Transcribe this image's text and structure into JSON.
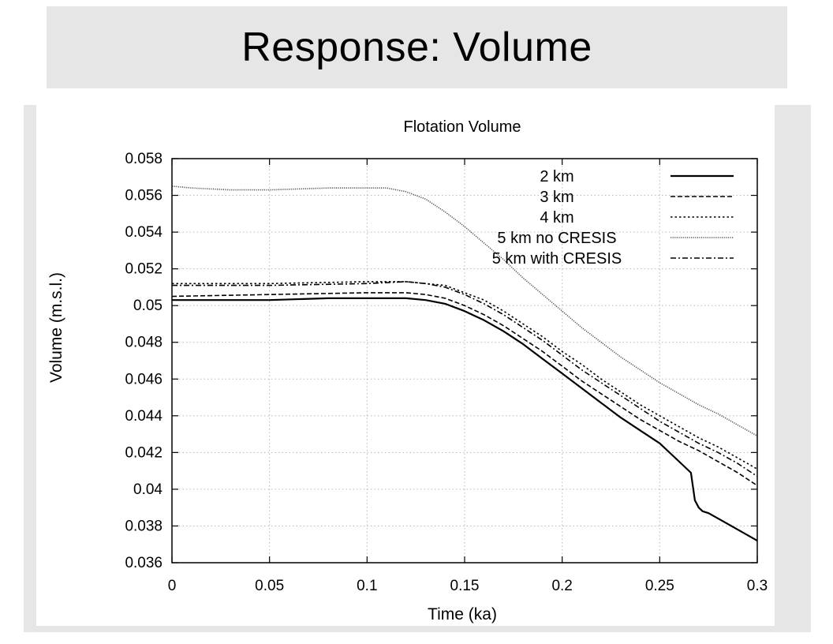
{
  "slide": {
    "title": "Response: Volume"
  },
  "chart_data": {
    "type": "line",
    "title": "Flotation Volume",
    "xlabel": "Time (ka)",
    "ylabel": "Volume (m.s.l.)",
    "xlim": [
      0,
      0.3
    ],
    "ylim": [
      0.036,
      0.058
    ],
    "xticks": [
      "0",
      "0.05",
      "0.1",
      "0.15",
      "0.2",
      "0.25",
      "0.3"
    ],
    "yticks": [
      "0.036",
      "0.038",
      "0.04",
      "0.042",
      "0.044",
      "0.046",
      "0.048",
      "0.05",
      "0.052",
      "0.054",
      "0.056",
      "0.058"
    ],
    "grid": true,
    "legend_position": "top-right",
    "series": [
      {
        "name": "2 km",
        "style": "solid",
        "x": [
          0,
          0.02,
          0.05,
          0.08,
          0.1,
          0.12,
          0.13,
          0.14,
          0.15,
          0.16,
          0.17,
          0.18,
          0.19,
          0.2,
          0.21,
          0.22,
          0.23,
          0.24,
          0.25,
          0.26,
          0.266,
          0.268,
          0.27,
          0.272,
          0.275,
          0.28,
          0.29,
          0.3
        ],
        "y": [
          0.0503,
          0.0503,
          0.0503,
          0.0504,
          0.0504,
          0.0504,
          0.0503,
          0.0501,
          0.0497,
          0.0492,
          0.0486,
          0.0479,
          0.0471,
          0.0463,
          0.0455,
          0.0447,
          0.0439,
          0.0432,
          0.0425,
          0.0415,
          0.0409,
          0.0394,
          0.039,
          0.0388,
          0.0387,
          0.0384,
          0.0378,
          0.0372
        ]
      },
      {
        "name": "3 km",
        "style": "dashed",
        "x": [
          0,
          0.05,
          0.1,
          0.12,
          0.13,
          0.14,
          0.15,
          0.16,
          0.17,
          0.18,
          0.19,
          0.2,
          0.21,
          0.22,
          0.23,
          0.24,
          0.25,
          0.26,
          0.27,
          0.28,
          0.29,
          0.3
        ],
        "y": [
          0.0505,
          0.0506,
          0.0507,
          0.0507,
          0.0506,
          0.0504,
          0.05,
          0.0495,
          0.0489,
          0.0482,
          0.0475,
          0.0467,
          0.0459,
          0.0452,
          0.0445,
          0.0438,
          0.0432,
          0.0426,
          0.0421,
          0.0415,
          0.0409,
          0.0402
        ]
      },
      {
        "name": "4 km",
        "style": "dotted",
        "x": [
          0,
          0.05,
          0.1,
          0.12,
          0.13,
          0.14,
          0.15,
          0.16,
          0.17,
          0.18,
          0.19,
          0.2,
          0.21,
          0.22,
          0.23,
          0.24,
          0.25,
          0.26,
          0.27,
          0.28,
          0.29,
          0.3
        ],
        "y": [
          0.0512,
          0.0512,
          0.0513,
          0.0513,
          0.0512,
          0.0511,
          0.0507,
          0.0503,
          0.0497,
          0.049,
          0.0483,
          0.0475,
          0.0468,
          0.046,
          0.0453,
          0.0446,
          0.044,
          0.0434,
          0.0428,
          0.0423,
          0.0417,
          0.0411
        ]
      },
      {
        "name": "5 km no CRESIS",
        "style": "fine-dotted",
        "x": [
          0,
          0.01,
          0.03,
          0.05,
          0.08,
          0.1,
          0.11,
          0.12,
          0.13,
          0.14,
          0.15,
          0.16,
          0.17,
          0.18,
          0.19,
          0.2,
          0.21,
          0.22,
          0.23,
          0.24,
          0.25,
          0.26,
          0.27,
          0.28,
          0.29,
          0.3
        ],
        "y": [
          0.0565,
          0.0564,
          0.0563,
          0.0563,
          0.0564,
          0.0564,
          0.0564,
          0.0562,
          0.0558,
          0.0551,
          0.0543,
          0.0534,
          0.0525,
          0.0515,
          0.0506,
          0.0497,
          0.0488,
          0.048,
          0.0472,
          0.0465,
          0.0458,
          0.0452,
          0.0446,
          0.0441,
          0.0435,
          0.0429
        ]
      },
      {
        "name": "5 km with CRESIS",
        "style": "dash-dot",
        "x": [
          0,
          0.05,
          0.1,
          0.12,
          0.13,
          0.14,
          0.15,
          0.16,
          0.17,
          0.18,
          0.19,
          0.2,
          0.21,
          0.22,
          0.23,
          0.24,
          0.25,
          0.26,
          0.27,
          0.28,
          0.29,
          0.3
        ],
        "y": [
          0.0511,
          0.0511,
          0.0512,
          0.0513,
          0.0512,
          0.051,
          0.0506,
          0.0501,
          0.0495,
          0.0488,
          0.0481,
          0.0473,
          0.0465,
          0.0458,
          0.0451,
          0.0444,
          0.0437,
          0.0431,
          0.0425,
          0.042,
          0.0414,
          0.0407
        ]
      }
    ]
  }
}
